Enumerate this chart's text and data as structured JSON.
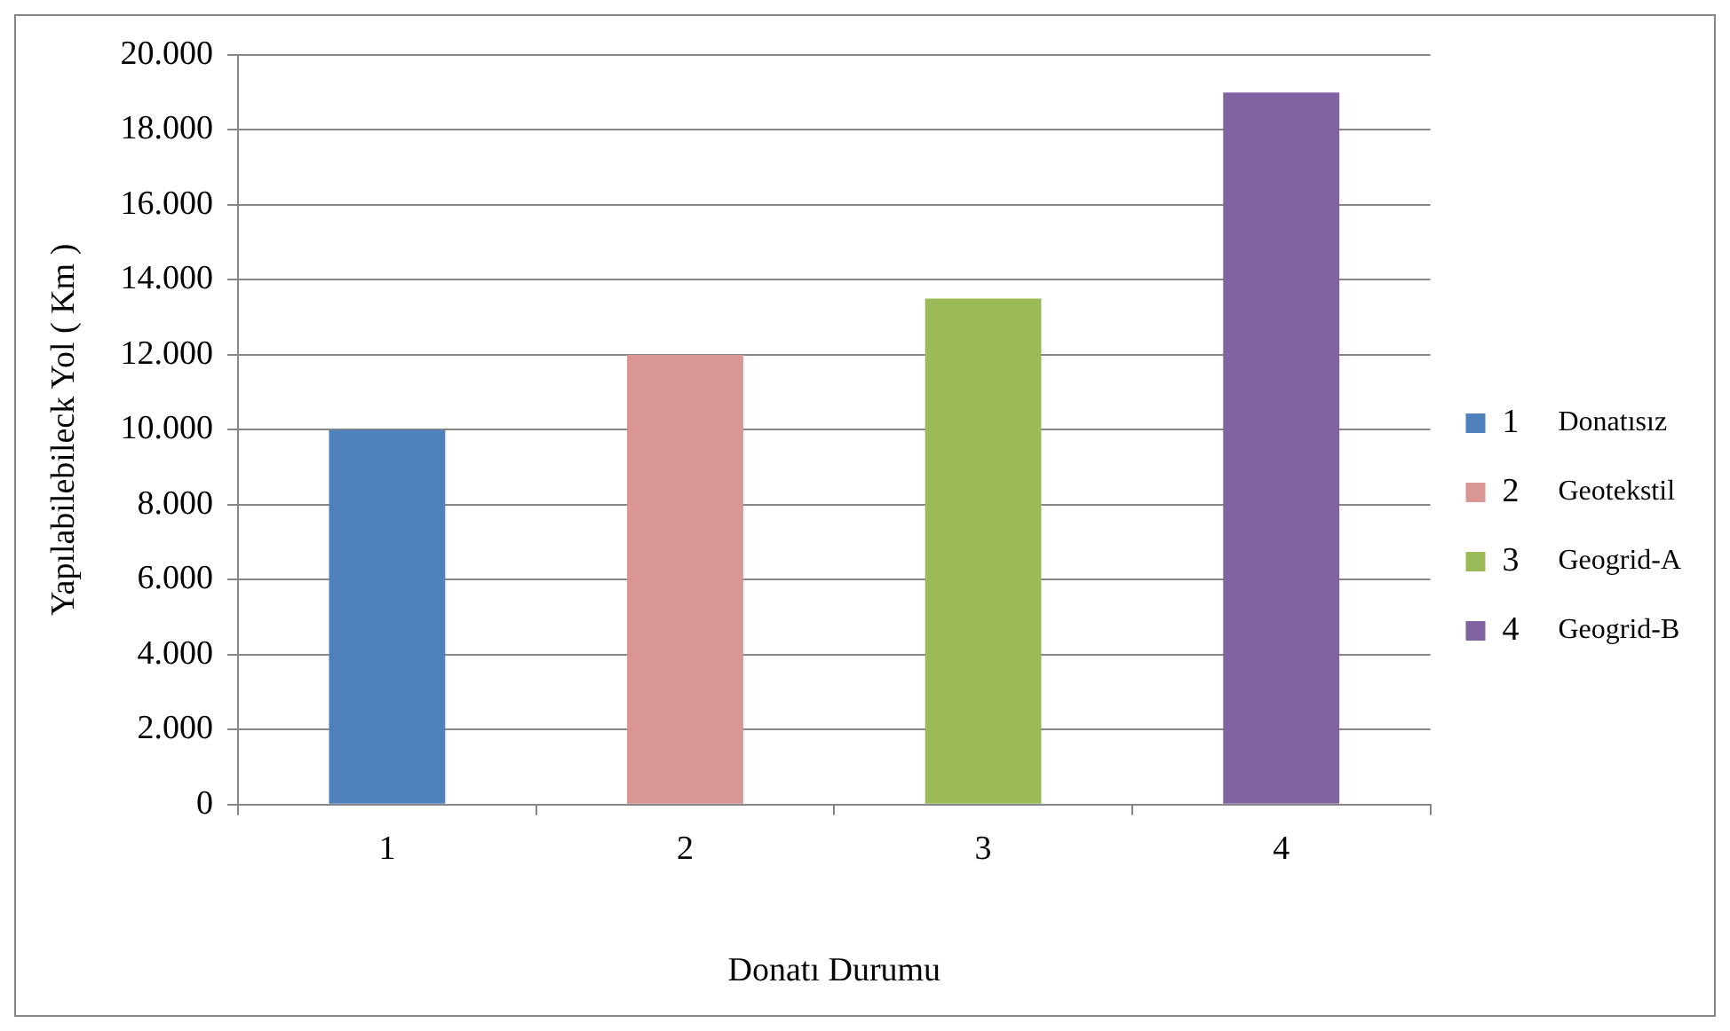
{
  "chart_data": {
    "type": "bar",
    "xlabel": "Donatı Durumu",
    "ylabel": "Yapılabilebileck Yol ( Km )",
    "categories": [
      "1",
      "2",
      "3",
      "4"
    ],
    "series": [
      {
        "name": "1",
        "color": "#4f81bd",
        "values": [
          10000,
          null,
          null,
          null
        ]
      },
      {
        "name": "2",
        "color": "#d99694",
        "values": [
          null,
          12000,
          null,
          null
        ]
      },
      {
        "name": "3",
        "color": "#9bbb59",
        "values": [
          null,
          null,
          13500,
          null
        ]
      },
      {
        "name": "4",
        "color": "#8064a2",
        "values": [
          null,
          null,
          null,
          19000
        ]
      }
    ],
    "ylim": [
      0,
      20000
    ],
    "yticks": [
      {
        "value": 0,
        "label": "0"
      },
      {
        "value": 2000,
        "label": "2.000"
      },
      {
        "value": 4000,
        "label": "4.000"
      },
      {
        "value": 6000,
        "label": "6.000"
      },
      {
        "value": 8000,
        "label": "8.000"
      },
      {
        "value": 10000,
        "label": "10.000"
      },
      {
        "value": 12000,
        "label": "12.000"
      },
      {
        "value": 14000,
        "label": "14.000"
      },
      {
        "value": 16000,
        "label": "16.000"
      },
      {
        "value": 18000,
        "label": "18.000"
      },
      {
        "value": 20000,
        "label": "20.000"
      }
    ],
    "grid": "y",
    "legend": "right",
    "annotations": [
      "Donatısız",
      "Geotekstil",
      "Geogrid-A",
      "Geogrid-B"
    ]
  }
}
